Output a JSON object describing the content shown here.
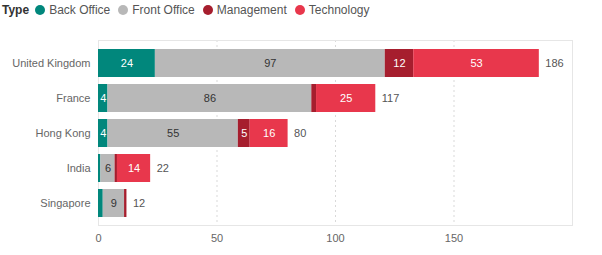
{
  "chart_data": {
    "type": "bar",
    "orientation": "horizontal",
    "stacked": true,
    "data_labels": true,
    "grid": true,
    "legend": "top-left",
    "legend_title": "Type",
    "categories": [
      "United Kingdom",
      "France",
      "Hong Kong",
      "India",
      "Singapore"
    ],
    "series": [
      {
        "name": "Back Office",
        "color": "#01877c",
        "values": [
          24,
          4,
          4,
          1,
          2
        ],
        "value_labels": [
          "24",
          "4",
          "4",
          null,
          null
        ]
      },
      {
        "name": "Front Office",
        "color": "#b8b8b8",
        "values": [
          97,
          86,
          55,
          6,
          9
        ],
        "value_labels": [
          "97",
          "86",
          "55",
          "6",
          "9"
        ]
      },
      {
        "name": "Management",
        "color": "#a61e2e",
        "values": [
          12,
          2,
          5,
          1,
          1
        ],
        "value_labels": [
          "12",
          null,
          "5",
          null,
          null
        ]
      },
      {
        "name": "Technology",
        "color": "#e8374c",
        "values": [
          53,
          25,
          16,
          14,
          0
        ],
        "value_labels": [
          "53",
          "25",
          "16",
          "14",
          null
        ]
      }
    ],
    "totals": [
      186,
      117,
      80,
      22,
      12
    ],
    "xlim": [
      0,
      200
    ],
    "xticks": [
      0,
      50,
      100,
      150
    ]
  }
}
